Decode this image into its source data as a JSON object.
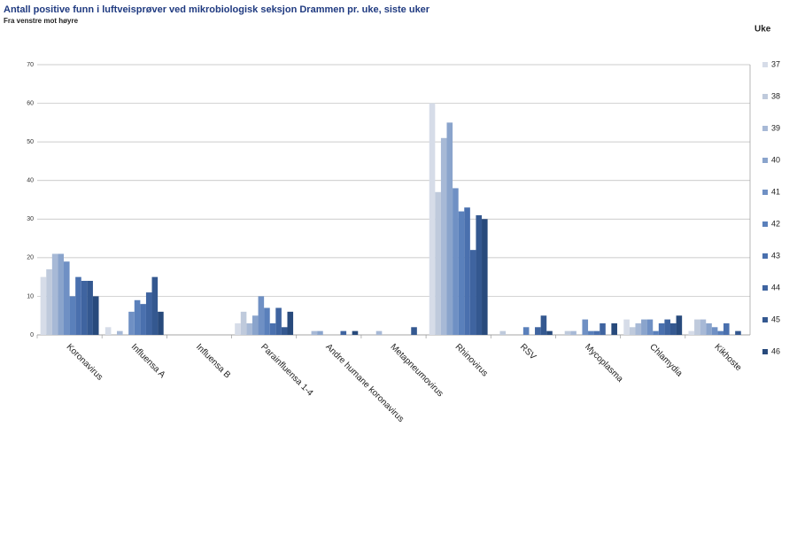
{
  "chart_data": {
    "type": "bar",
    "title": "Antall positive funn i luftveisprøver ved mikrobiologisk seksjon Drammen pr. uke, siste uker",
    "subtitle": "Fra venstre mot høyre",
    "legend_title": "Uke",
    "categories": [
      "Koronavirus",
      "Influensa A",
      "Influensa B",
      "Parainfluensa 1-4",
      "Andre humane koronavirus",
      "Metapneumovirus",
      "Rhinovirus",
      "RSV",
      "Mycoplasma",
      "Chlamydia",
      "Kikhoste"
    ],
    "series": [
      {
        "name": "37",
        "color": "#d6dce8",
        "values": [
          15,
          2,
          0,
          3,
          0,
          0,
          60,
          0,
          0,
          4,
          1
        ]
      },
      {
        "name": "38",
        "color": "#bfcadc",
        "values": [
          17,
          0,
          0,
          6,
          0,
          0,
          37,
          1,
          1,
          2,
          4
        ]
      },
      {
        "name": "39",
        "color": "#a7b9d6",
        "values": [
          21,
          1,
          0,
          3,
          1,
          1,
          51,
          0,
          1,
          3,
          4
        ]
      },
      {
        "name": "40",
        "color": "#8aa4cc",
        "values": [
          21,
          0,
          0,
          5,
          1,
          0,
          55,
          0,
          0,
          4,
          3
        ]
      },
      {
        "name": "41",
        "color": "#6f90c4",
        "values": [
          19,
          6,
          0,
          10,
          0,
          0,
          38,
          0,
          4,
          4,
          2
        ]
      },
      {
        "name": "42",
        "color": "#5a80bb",
        "values": [
          10,
          9,
          0,
          7,
          0,
          0,
          32,
          2,
          1,
          1,
          1
        ]
      },
      {
        "name": "43",
        "color": "#4a70ae",
        "values": [
          15,
          8,
          0,
          3,
          0,
          0,
          33,
          0,
          1,
          3,
          3
        ]
      },
      {
        "name": "44",
        "color": "#3f64a0",
        "values": [
          14,
          11,
          0,
          7,
          1,
          0,
          22,
          2,
          3,
          4,
          0
        ]
      },
      {
        "name": "45",
        "color": "#345890",
        "values": [
          14,
          15,
          0,
          2,
          0,
          2,
          31,
          5,
          0,
          3,
          1
        ]
      },
      {
        "name": "46",
        "color": "#284a7c",
        "values": [
          10,
          6,
          0,
          6,
          1,
          0,
          30,
          1,
          3,
          5,
          0
        ]
      }
    ],
    "ylim": [
      0,
      70
    ],
    "yticks": [
      0,
      10,
      20,
      30,
      40,
      50,
      60,
      70
    ],
    "grid": true
  }
}
